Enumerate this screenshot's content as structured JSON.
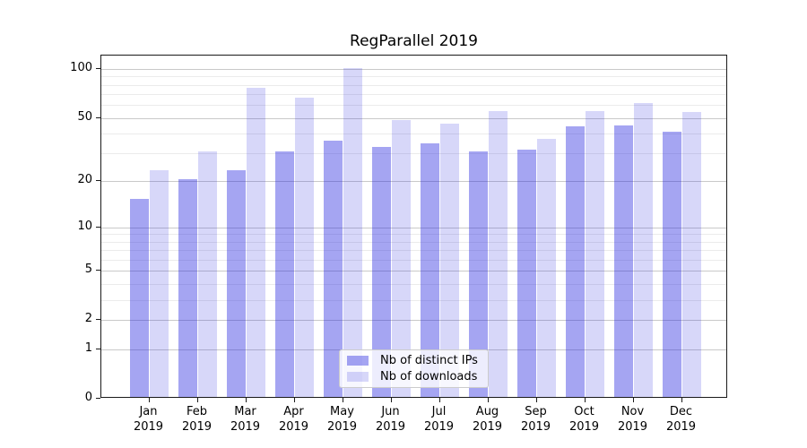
{
  "figure": {
    "title": "RegParallel 2019",
    "background_color": "#ffffff"
  },
  "chart_data": {
    "type": "bar",
    "title": "RegParallel 2019",
    "xlabel": "",
    "ylabel": "",
    "grid": true,
    "yscale": "log(1+y)",
    "ylim": [
      0,
      121
    ],
    "y_ticks": [
      0,
      1,
      2,
      5,
      10,
      20,
      50,
      100
    ],
    "y_minor_gridlines": [
      3,
      4,
      6,
      7,
      8,
      9,
      30,
      40,
      60,
      70,
      80,
      90
    ],
    "categories": [
      {
        "month": "Jan",
        "year": "2019"
      },
      {
        "month": "Feb",
        "year": "2019"
      },
      {
        "month": "Mar",
        "year": "2019"
      },
      {
        "month": "Apr",
        "year": "2019"
      },
      {
        "month": "May",
        "year": "2019"
      },
      {
        "month": "Jun",
        "year": "2019"
      },
      {
        "month": "Jul",
        "year": "2019"
      },
      {
        "month": "Aug",
        "year": "2019"
      },
      {
        "month": "Sep",
        "year": "2019"
      },
      {
        "month": "Oct",
        "year": "2019"
      },
      {
        "month": "Nov",
        "year": "2019"
      },
      {
        "month": "Dec",
        "year": "2019"
      }
    ],
    "series": [
      {
        "name": "Nb of distinct IPs",
        "color": "rgba(40,40,225,0.42)",
        "color_hex_on_white": "#a5a5f2",
        "values": [
          15,
          20,
          23,
          30,
          35,
          32,
          34,
          30,
          31,
          43,
          44,
          40
        ]
      },
      {
        "name": "Nb of downloads",
        "color": "rgba(40,40,225,0.185)",
        "color_hex_on_white": "#d7d7f9",
        "values": [
          23,
          30,
          75,
          65,
          99,
          47,
          45,
          54,
          36,
          54,
          60,
          53
        ]
      }
    ],
    "legend_position": "lower center"
  },
  "colors": {
    "major_gridline": "#c9c9c9",
    "minor_gridline": "#ebebeb",
    "spine": "#1a1a1a",
    "text": "#000000"
  }
}
